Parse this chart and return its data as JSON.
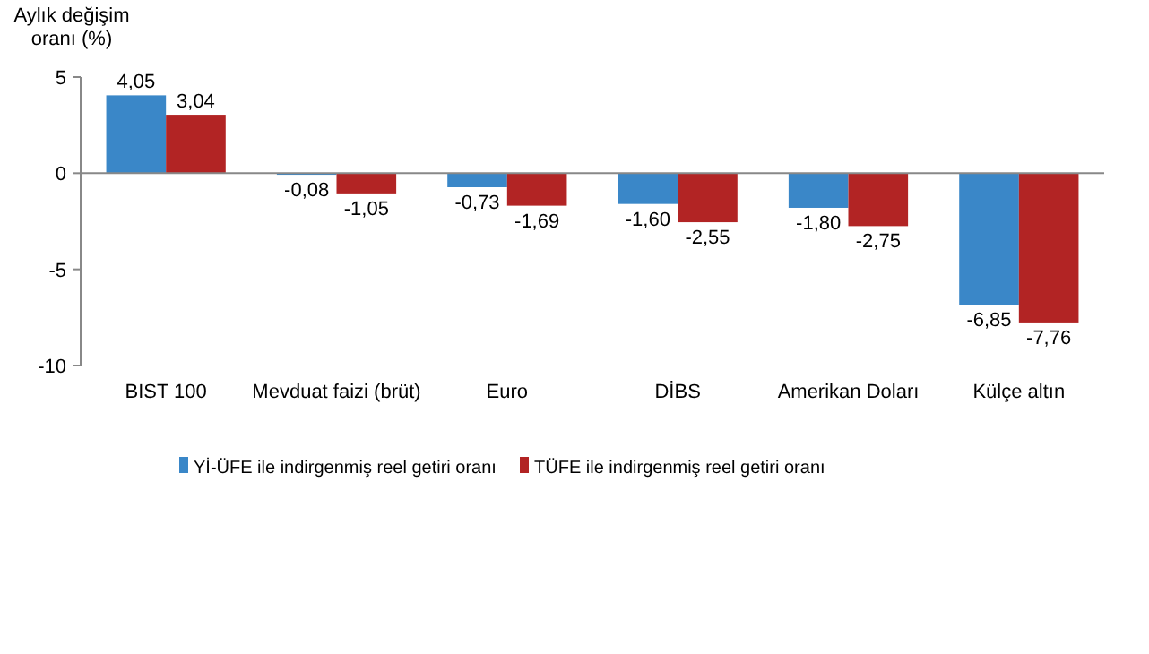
{
  "chart_data": {
    "type": "bar",
    "ylabel": "Aylık değişim oranı (%)",
    "categories": [
      "BIST 100",
      "Mevduat faizi (brüt)",
      "Euro",
      "DİBS",
      "Amerikan Doları",
      "Külçe altın"
    ],
    "series": [
      {
        "name": "Yİ-ÜFE ile indirgenmiş reel getiri oranı",
        "color": "#3a87c8",
        "values": [
          4.05,
          -0.08,
          -0.73,
          -1.6,
          -1.8,
          -6.85
        ],
        "value_labels": [
          "4,05",
          "-0,08",
          "-0,73",
          "-1,60",
          "-1,80",
          "-6,85"
        ]
      },
      {
        "name": "TÜFE ile indirgenmiş reel getiri oranı",
        "color": "#b22424",
        "values": [
          3.04,
          -1.05,
          -1.69,
          -2.55,
          -2.75,
          -7.76
        ],
        "value_labels": [
          "3,04",
          "-1,05",
          "-1,69",
          "-2,55",
          "-2,75",
          "-7,76"
        ]
      }
    ],
    "ylim": [
      -10,
      5
    ],
    "yticks": [
      -10,
      -5,
      0,
      5
    ],
    "legend": "bottom"
  }
}
